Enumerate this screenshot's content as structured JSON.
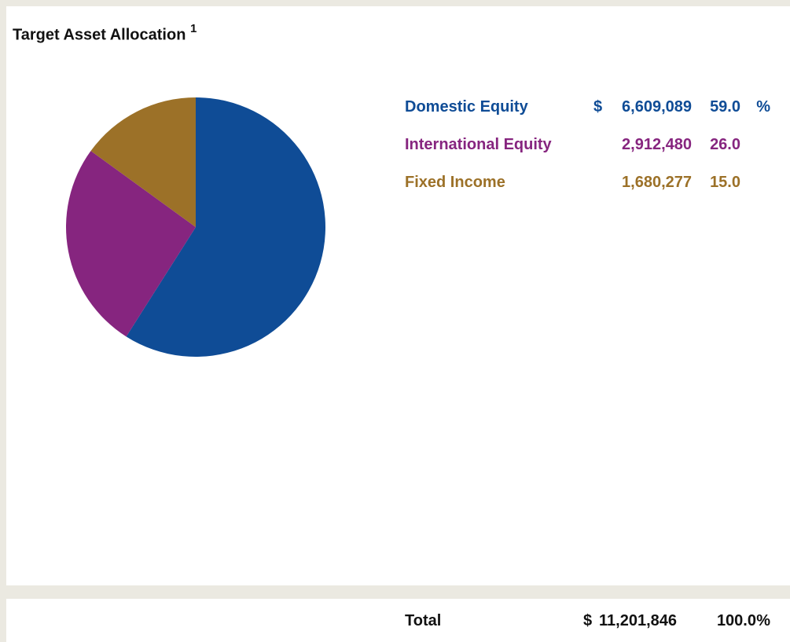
{
  "title": "Target Asset Allocation",
  "title_note": "1",
  "chart_data": {
    "type": "pie",
    "categories": [
      "Domestic Equity",
      "International Equity",
      "Fixed Income"
    ],
    "values": [
      59,
      26,
      15
    ],
    "value_labels": [
      "59.0",
      "26.0",
      "15.0"
    ],
    "colors": [
      "#0f4c96",
      "#86257f",
      "#9c7128"
    ]
  },
  "amounts": [
    "6,609,089",
    "2,912,480",
    "1,680,277"
  ],
  "currency": "$",
  "percent_sign": "%",
  "total": {
    "label": "Total",
    "currency": "$",
    "amount": "11,201,846",
    "percent": "100.0",
    "percent_sign": "%"
  }
}
